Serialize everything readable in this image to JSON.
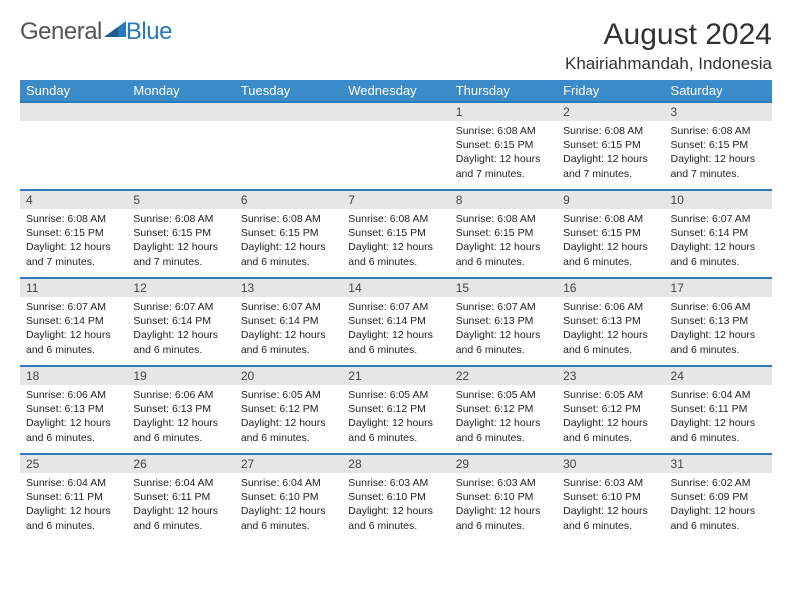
{
  "brand": {
    "part1": "General",
    "part2": "Blue"
  },
  "title": "August 2024",
  "location": "Khairiahmandah, Indonesia",
  "colors": {
    "header_bg": "#3b8bc8",
    "row_border": "#2a7ab9",
    "daynum_bg": "#e6e6e6",
    "brand_blue": "#2a7ab9"
  },
  "day_headers": [
    "Sunday",
    "Monday",
    "Tuesday",
    "Wednesday",
    "Thursday",
    "Friday",
    "Saturday"
  ],
  "weeks": [
    [
      {
        "n": "",
        "lines": []
      },
      {
        "n": "",
        "lines": []
      },
      {
        "n": "",
        "lines": []
      },
      {
        "n": "",
        "lines": []
      },
      {
        "n": "1",
        "lines": [
          "Sunrise: 6:08 AM",
          "Sunset: 6:15 PM",
          "Daylight: 12 hours and 7 minutes."
        ]
      },
      {
        "n": "2",
        "lines": [
          "Sunrise: 6:08 AM",
          "Sunset: 6:15 PM",
          "Daylight: 12 hours and 7 minutes."
        ]
      },
      {
        "n": "3",
        "lines": [
          "Sunrise: 6:08 AM",
          "Sunset: 6:15 PM",
          "Daylight: 12 hours and 7 minutes."
        ]
      }
    ],
    [
      {
        "n": "4",
        "lines": [
          "Sunrise: 6:08 AM",
          "Sunset: 6:15 PM",
          "Daylight: 12 hours and 7 minutes."
        ]
      },
      {
        "n": "5",
        "lines": [
          "Sunrise: 6:08 AM",
          "Sunset: 6:15 PM",
          "Daylight: 12 hours and 7 minutes."
        ]
      },
      {
        "n": "6",
        "lines": [
          "Sunrise: 6:08 AM",
          "Sunset: 6:15 PM",
          "Daylight: 12 hours and 6 minutes."
        ]
      },
      {
        "n": "7",
        "lines": [
          "Sunrise: 6:08 AM",
          "Sunset: 6:15 PM",
          "Daylight: 12 hours and 6 minutes."
        ]
      },
      {
        "n": "8",
        "lines": [
          "Sunrise: 6:08 AM",
          "Sunset: 6:15 PM",
          "Daylight: 12 hours and 6 minutes."
        ]
      },
      {
        "n": "9",
        "lines": [
          "Sunrise: 6:08 AM",
          "Sunset: 6:15 PM",
          "Daylight: 12 hours and 6 minutes."
        ]
      },
      {
        "n": "10",
        "lines": [
          "Sunrise: 6:07 AM",
          "Sunset: 6:14 PM",
          "Daylight: 12 hours and 6 minutes."
        ]
      }
    ],
    [
      {
        "n": "11",
        "lines": [
          "Sunrise: 6:07 AM",
          "Sunset: 6:14 PM",
          "Daylight: 12 hours and 6 minutes."
        ]
      },
      {
        "n": "12",
        "lines": [
          "Sunrise: 6:07 AM",
          "Sunset: 6:14 PM",
          "Daylight: 12 hours and 6 minutes."
        ]
      },
      {
        "n": "13",
        "lines": [
          "Sunrise: 6:07 AM",
          "Sunset: 6:14 PM",
          "Daylight: 12 hours and 6 minutes."
        ]
      },
      {
        "n": "14",
        "lines": [
          "Sunrise: 6:07 AM",
          "Sunset: 6:14 PM",
          "Daylight: 12 hours and 6 minutes."
        ]
      },
      {
        "n": "15",
        "lines": [
          "Sunrise: 6:07 AM",
          "Sunset: 6:13 PM",
          "Daylight: 12 hours and 6 minutes."
        ]
      },
      {
        "n": "16",
        "lines": [
          "Sunrise: 6:06 AM",
          "Sunset: 6:13 PM",
          "Daylight: 12 hours and 6 minutes."
        ]
      },
      {
        "n": "17",
        "lines": [
          "Sunrise: 6:06 AM",
          "Sunset: 6:13 PM",
          "Daylight: 12 hours and 6 minutes."
        ]
      }
    ],
    [
      {
        "n": "18",
        "lines": [
          "Sunrise: 6:06 AM",
          "Sunset: 6:13 PM",
          "Daylight: 12 hours and 6 minutes."
        ]
      },
      {
        "n": "19",
        "lines": [
          "Sunrise: 6:06 AM",
          "Sunset: 6:13 PM",
          "Daylight: 12 hours and 6 minutes."
        ]
      },
      {
        "n": "20",
        "lines": [
          "Sunrise: 6:05 AM",
          "Sunset: 6:12 PM",
          "Daylight: 12 hours and 6 minutes."
        ]
      },
      {
        "n": "21",
        "lines": [
          "Sunrise: 6:05 AM",
          "Sunset: 6:12 PM",
          "Daylight: 12 hours and 6 minutes."
        ]
      },
      {
        "n": "22",
        "lines": [
          "Sunrise: 6:05 AM",
          "Sunset: 6:12 PM",
          "Daylight: 12 hours and 6 minutes."
        ]
      },
      {
        "n": "23",
        "lines": [
          "Sunrise: 6:05 AM",
          "Sunset: 6:12 PM",
          "Daylight: 12 hours and 6 minutes."
        ]
      },
      {
        "n": "24",
        "lines": [
          "Sunrise: 6:04 AM",
          "Sunset: 6:11 PM",
          "Daylight: 12 hours and 6 minutes."
        ]
      }
    ],
    [
      {
        "n": "25",
        "lines": [
          "Sunrise: 6:04 AM",
          "Sunset: 6:11 PM",
          "Daylight: 12 hours and 6 minutes."
        ]
      },
      {
        "n": "26",
        "lines": [
          "Sunrise: 6:04 AM",
          "Sunset: 6:11 PM",
          "Daylight: 12 hours and 6 minutes."
        ]
      },
      {
        "n": "27",
        "lines": [
          "Sunrise: 6:04 AM",
          "Sunset: 6:10 PM",
          "Daylight: 12 hours and 6 minutes."
        ]
      },
      {
        "n": "28",
        "lines": [
          "Sunrise: 6:03 AM",
          "Sunset: 6:10 PM",
          "Daylight: 12 hours and 6 minutes."
        ]
      },
      {
        "n": "29",
        "lines": [
          "Sunrise: 6:03 AM",
          "Sunset: 6:10 PM",
          "Daylight: 12 hours and 6 minutes."
        ]
      },
      {
        "n": "30",
        "lines": [
          "Sunrise: 6:03 AM",
          "Sunset: 6:10 PM",
          "Daylight: 12 hours and 6 minutes."
        ]
      },
      {
        "n": "31",
        "lines": [
          "Sunrise: 6:02 AM",
          "Sunset: 6:09 PM",
          "Daylight: 12 hours and 6 minutes."
        ]
      }
    ]
  ]
}
